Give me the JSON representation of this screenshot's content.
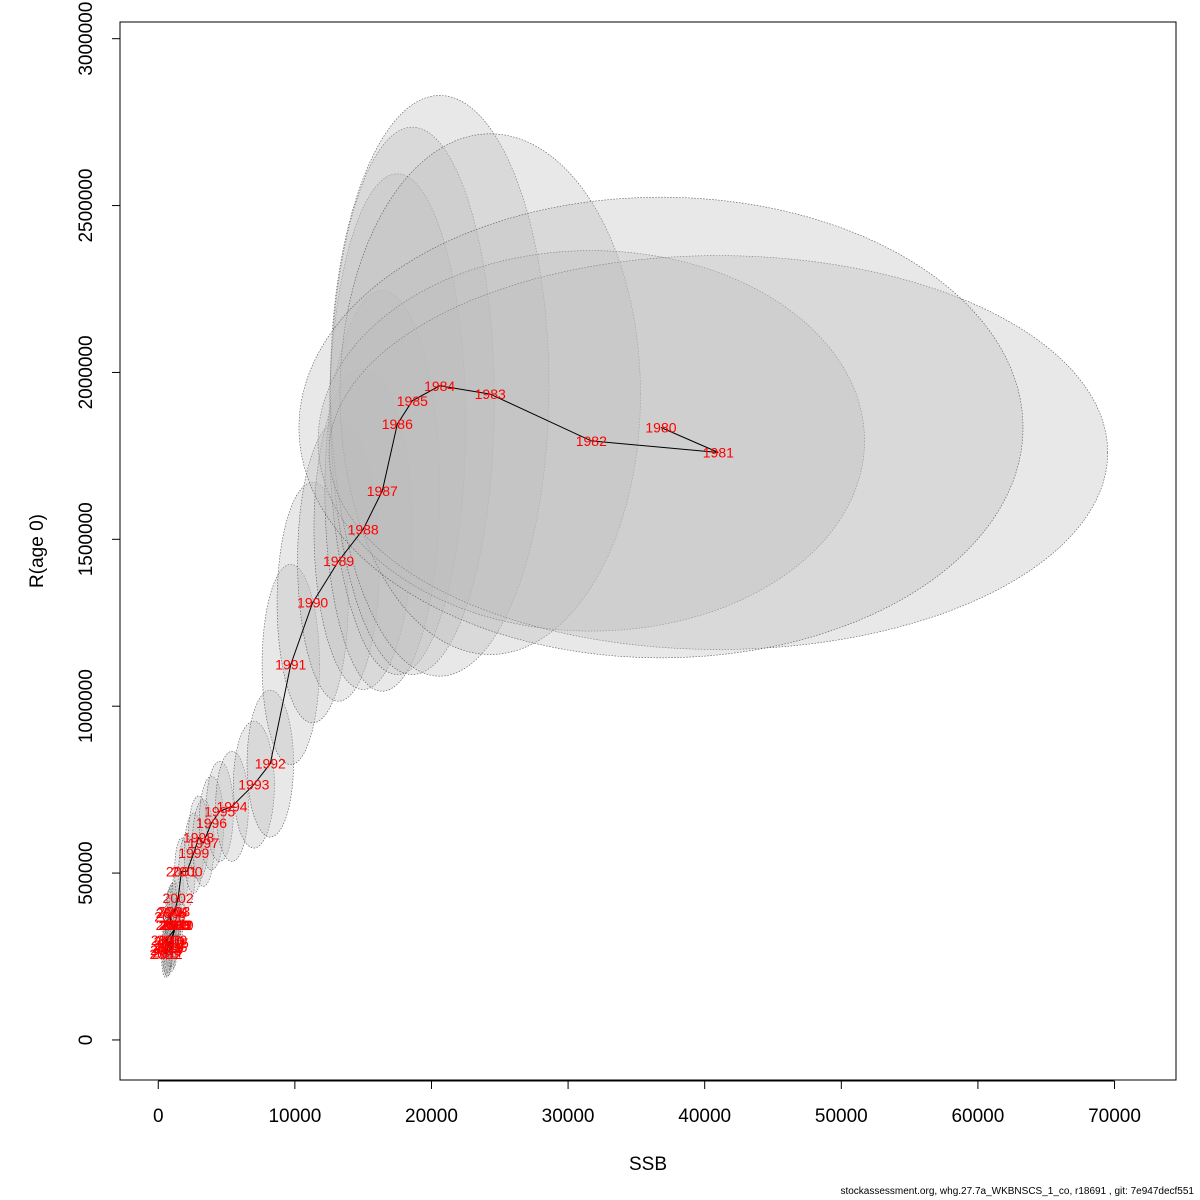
{
  "chart_data": {
    "type": "scatter",
    "title": "",
    "xlabel": "SSB",
    "ylabel": "R(age 0)",
    "xlim": [
      -2800,
      74500
    ],
    "ylim": [
      -120000,
      3050000
    ],
    "x_ticks": [
      0,
      10000,
      20000,
      30000,
      40000,
      50000,
      60000,
      70000
    ],
    "y_ticks": [
      0,
      500000,
      1000000,
      1500000,
      2000000,
      2500000,
      3000000
    ],
    "x_tick_labels": [
      "0",
      "10000",
      "20000",
      "30000",
      "40000",
      "50000",
      "60000",
      "70000"
    ],
    "y_tick_labels": [
      "0",
      "500000",
      "1000000",
      "1500000",
      "2000000",
      "2500000",
      "3000000"
    ],
    "grid": false,
    "point_label_color": "#ff0000",
    "line_color": "#000000",
    "ellipse_fill": "#bebebe",
    "ellipse_stroke": "#555555",
    "points": [
      {
        "year": "1980",
        "x": 36800,
        "y": 1835000,
        "rx": 26500,
        "ry": 690000
      },
      {
        "year": "1981",
        "x": 41000,
        "y": 1760000,
        "rx": 28500,
        "ry": 590000
      },
      {
        "year": "1982",
        "x": 31700,
        "y": 1795000,
        "rx": 20000,
        "ry": 570000
      },
      {
        "year": "1983",
        "x": 24300,
        "y": 1935000,
        "rx": 11000,
        "ry": 780000
      },
      {
        "year": "1984",
        "x": 20600,
        "y": 1960000,
        "rx": 8000,
        "ry": 870000
      },
      {
        "year": "1985",
        "x": 18600,
        "y": 1915000,
        "rx": 6000,
        "ry": 820000
      },
      {
        "year": "1986",
        "x": 17500,
        "y": 1845000,
        "rx": 5000,
        "ry": 750000
      },
      {
        "year": "1987",
        "x": 16400,
        "y": 1645000,
        "rx": 4200,
        "ry": 600000
      },
      {
        "year": "1988",
        "x": 15000,
        "y": 1530000,
        "rx": 3600,
        "ry": 480000
      },
      {
        "year": "1989",
        "x": 13200,
        "y": 1435000,
        "rx": 3000,
        "ry": 420000
      },
      {
        "year": "1990",
        "x": 11300,
        "y": 1310000,
        "rx": 2600,
        "ry": 360000
      },
      {
        "year": "1991",
        "x": 9700,
        "y": 1125000,
        "rx": 2100,
        "ry": 300000
      },
      {
        "year": "1992",
        "x": 8200,
        "y": 828000,
        "rx": 1700,
        "ry": 220000
      },
      {
        "year": "1993",
        "x": 7000,
        "y": 765000,
        "rx": 1500,
        "ry": 190000
      },
      {
        "year": "1994",
        "x": 5400,
        "y": 700000,
        "rx": 1200,
        "ry": 165000
      },
      {
        "year": "1995",
        "x": 4500,
        "y": 685000,
        "rx": 1000,
        "ry": 150000
      },
      {
        "year": "1996",
        "x": 3900,
        "y": 650000,
        "rx": 900,
        "ry": 140000
      },
      {
        "year": "1997",
        "x": 3300,
        "y": 590000,
        "rx": 800,
        "ry": 130000
      },
      {
        "year": "1998",
        "x": 2950,
        "y": 606000,
        "rx": 750,
        "ry": 125000
      },
      {
        "year": "1999",
        "x": 2600,
        "y": 560000,
        "rx": 700,
        "ry": 120000
      },
      {
        "year": "2000",
        "x": 2100,
        "y": 505000,
        "rx": 600,
        "ry": 110000
      },
      {
        "year": "2001",
        "x": 1700,
        "y": 505000,
        "rx": 500,
        "ry": 100000
      },
      {
        "year": "2002",
        "x": 1450,
        "y": 425000,
        "rx": 450,
        "ry": 95000
      },
      {
        "year": "2003",
        "x": 1200,
        "y": 385000,
        "rx": 400,
        "ry": 90000
      },
      {
        "year": "2004",
        "x": 1050,
        "y": 385000,
        "rx": 380,
        "ry": 85000
      },
      {
        "year": "2005",
        "x": 950,
        "y": 380000,
        "rx": 360,
        "ry": 85000
      },
      {
        "year": "2006",
        "x": 850,
        "y": 370000,
        "rx": 340,
        "ry": 82000
      },
      {
        "year": "2007",
        "x": 950,
        "y": 345000,
        "rx": 330,
        "ry": 80000
      },
      {
        "year": "2008",
        "x": 1200,
        "y": 345000,
        "rx": 330,
        "ry": 80000
      },
      {
        "year": "2009",
        "x": 1000,
        "y": 300000,
        "rx": 320,
        "ry": 78000
      },
      {
        "year": "2010",
        "x": 800,
        "y": 295000,
        "rx": 300,
        "ry": 75000
      },
      {
        "year": "2011",
        "x": 700,
        "y": 275000,
        "rx": 290,
        "ry": 72000
      },
      {
        "year": "2012",
        "x": 650,
        "y": 258000,
        "rx": 280,
        "ry": 70000
      },
      {
        "year": "2013",
        "x": 550,
        "y": 270000,
        "rx": 270,
        "ry": 70000
      },
      {
        "year": "2014",
        "x": 800,
        "y": 285000,
        "rx": 290,
        "ry": 72000
      },
      {
        "year": "2015",
        "x": 1100,
        "y": 290000,
        "rx": 300,
        "ry": 74000
      },
      {
        "year": "2016",
        "x": 1000,
        "y": 278000,
        "rx": 290,
        "ry": 72000
      },
      {
        "year": "2017",
        "x": 750,
        "y": 262000,
        "rx": 280,
        "ry": 70000
      },
      {
        "year": "2018",
        "x": 1300,
        "y": 345000,
        "rx": 320,
        "ry": 80000
      },
      {
        "year": "2019",
        "x": 1450,
        "y": 345000,
        "rx": 330,
        "ry": 80000
      },
      {
        "year": "2020",
        "x": 600,
        "y": 300000,
        "rx": 280,
        "ry": 72000
      },
      {
        "year": "2021",
        "x": 500,
        "y": 258000,
        "rx": 270,
        "ry": 70000
      },
      {
        "year": "2022",
        "x": 1350,
        "y": 345000,
        "rx": 320,
        "ry": 80000
      },
      {
        "year": "2023",
        "x": 1150,
        "y": 345000,
        "rx": 300,
        "ry": 78000
      }
    ]
  },
  "footer": {
    "text": "stockassessment.org, whg.27.7a_WKBNSCS_1_co, r18691 , git: 7e947decf551"
  }
}
